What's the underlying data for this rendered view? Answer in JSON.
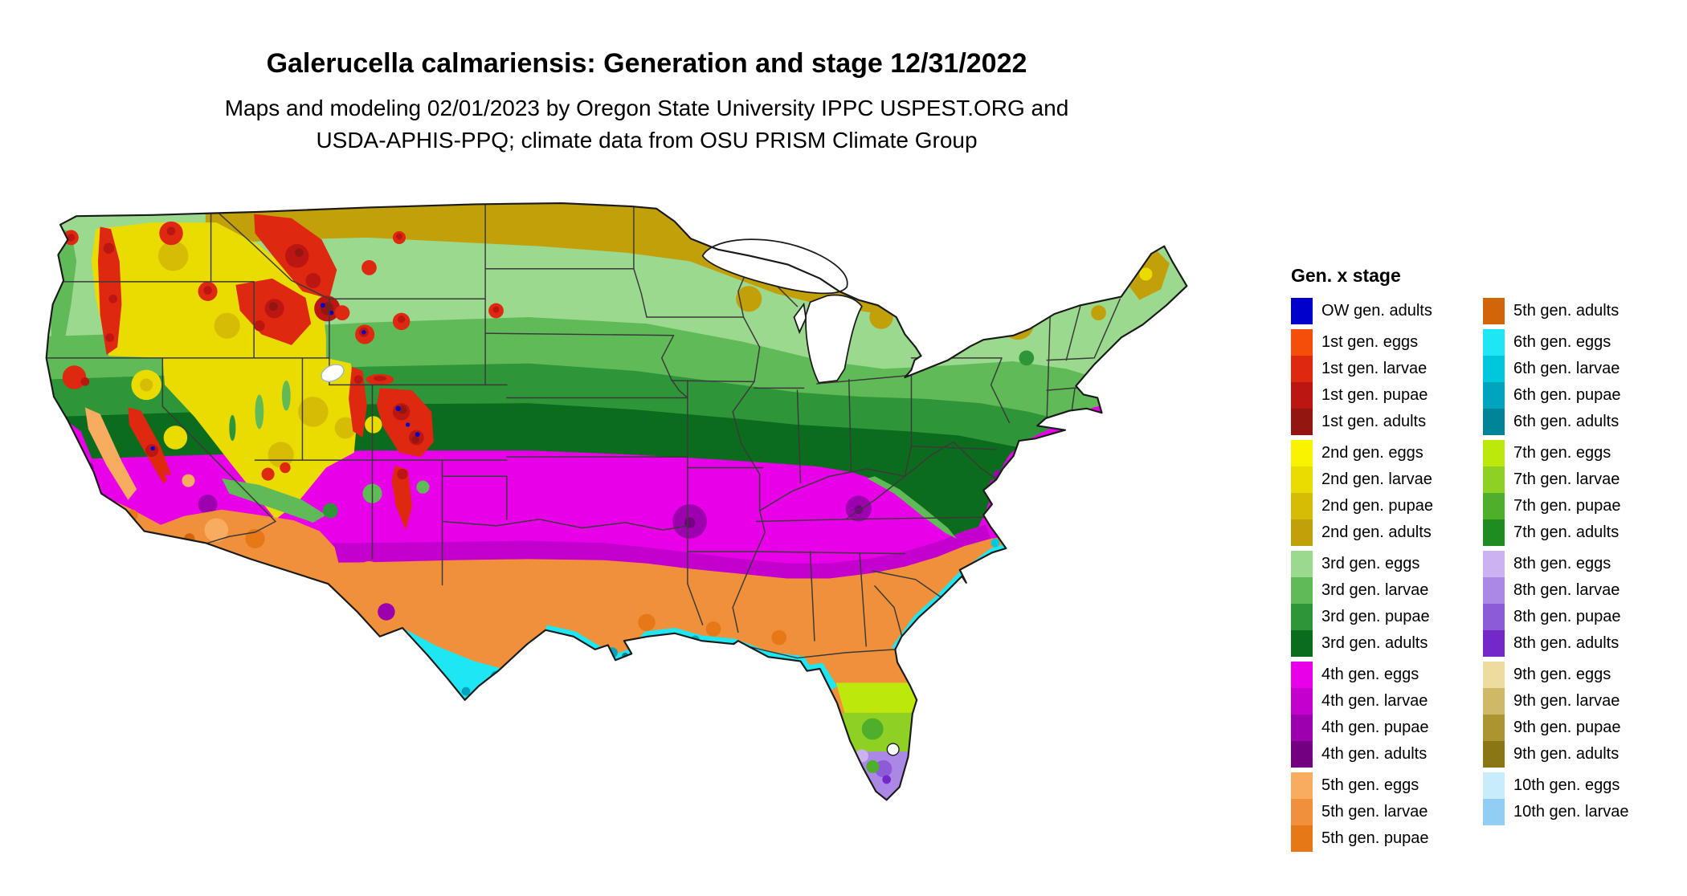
{
  "header": {
    "title": "Galerucella calmariensis: Generation and stage 12/31/2022",
    "subtitle_line1": "Maps and modeling 02/01/2023 by Oregon State University IPPC USPEST.ORG and",
    "subtitle_line2": "USDA-APHIS-PPQ; climate data from OSU PRISM Climate Group"
  },
  "palette": {
    "ow_adults": "#0000CC",
    "g1_eggs": "#F54D0A",
    "g1_larvae": "#DE2810",
    "g1_pupae": "#BC1612",
    "g1_adults": "#931710",
    "g2_eggs": "#F8F400",
    "g2_larvae": "#EADC00",
    "g2_pupae": "#D7BC06",
    "g2_adults": "#C2A00A",
    "g3_eggs": "#9BD98F",
    "g3_larvae": "#60BA57",
    "g3_pupae": "#2E9638",
    "g3_adults": "#0C6C1E",
    "g4_eggs": "#E800E8",
    "g4_larvae": "#C400CE",
    "g4_pupae": "#9D00AE",
    "g4_adults": "#730081",
    "g5_eggs": "#F8AC60",
    "g5_larvae": "#F1903A",
    "g5_pupae": "#E67818",
    "g5_adults": "#D2640A",
    "g6_eggs": "#1EE6F2",
    "g6_larvae": "#00C8DC",
    "g6_pupae": "#00A4BC",
    "g6_adults": "#008496",
    "g7_eggs": "#BCE80C",
    "g7_larvae": "#8ED024",
    "g7_pupae": "#4FAE2A",
    "g7_adults": "#1F8C22",
    "g8_eggs": "#CDB2F2",
    "g8_larvae": "#AC88E6",
    "g8_pupae": "#8C5CD8",
    "g8_adults": "#7428C8",
    "g9_eggs": "#EDDCA0",
    "g9_larvae": "#CFB968",
    "g9_pupae": "#AC9530",
    "g9_adults": "#8A7614",
    "g10_eggs": "#C8ECFC",
    "g10_larvae": "#92CEF4",
    "map_outline": "#1a1a1a",
    "state_line": "#3a3a3a"
  },
  "legend": {
    "title": "Gen. x stage",
    "columns": [
      {
        "groups": [
          {
            "items": [
              {
                "label": "OW gen. adults",
                "fill": "ow_adults"
              }
            ]
          },
          {
            "items": [
              {
                "label": "1st gen. eggs",
                "fill": "g1_eggs"
              },
              {
                "label": "1st gen. larvae",
                "fill": "g1_larvae"
              },
              {
                "label": "1st gen. pupae",
                "fill": "g1_pupae"
              },
              {
                "label": "1st gen. adults",
                "fill": "g1_adults"
              }
            ]
          },
          {
            "items": [
              {
                "label": "2nd gen. eggs",
                "fill": "g2_eggs"
              },
              {
                "label": "2nd gen. larvae",
                "fill": "g2_larvae"
              },
              {
                "label": "2nd gen. pupae",
                "fill": "g2_pupae"
              },
              {
                "label": "2nd gen. adults",
                "fill": "g2_adults"
              }
            ]
          },
          {
            "items": [
              {
                "label": "3rd gen. eggs",
                "fill": "g3_eggs"
              },
              {
                "label": "3rd gen. larvae",
                "fill": "g3_larvae"
              },
              {
                "label": "3rd gen. pupae",
                "fill": "g3_pupae"
              },
              {
                "label": "3rd gen. adults",
                "fill": "g3_adults"
              }
            ]
          },
          {
            "items": [
              {
                "label": "4th gen. eggs",
                "fill": "g4_eggs"
              },
              {
                "label": "4th gen. larvae",
                "fill": "g4_larvae"
              },
              {
                "label": "4th gen. pupae",
                "fill": "g4_pupae"
              },
              {
                "label": "4th gen. adults",
                "fill": "g4_adults"
              }
            ]
          },
          {
            "items": [
              {
                "label": "5th gen. eggs",
                "fill": "g5_eggs"
              },
              {
                "label": "5th gen. larvae",
                "fill": "g5_larvae"
              },
              {
                "label": "5th gen. pupae",
                "fill": "g5_pupae"
              }
            ]
          }
        ]
      },
      {
        "groups": [
          {
            "items": [
              {
                "label": "5th gen. adults",
                "fill": "g5_adults"
              }
            ]
          },
          {
            "items": [
              {
                "label": "6th gen. eggs",
                "fill": "g6_eggs"
              },
              {
                "label": "6th gen. larvae",
                "fill": "g6_larvae"
              },
              {
                "label": "6th gen. pupae",
                "fill": "g6_pupae"
              },
              {
                "label": "6th gen. adults",
                "fill": "g6_adults"
              }
            ]
          },
          {
            "items": [
              {
                "label": "7th gen. eggs",
                "fill": "g7_eggs"
              },
              {
                "label": "7th gen. larvae",
                "fill": "g7_larvae"
              },
              {
                "label": "7th gen. pupae",
                "fill": "g7_pupae"
              },
              {
                "label": "7th gen. adults",
                "fill": "g7_adults"
              }
            ]
          },
          {
            "items": [
              {
                "label": "8th gen. eggs",
                "fill": "g8_eggs"
              },
              {
                "label": "8th gen. larvae",
                "fill": "g8_larvae"
              },
              {
                "label": "8th gen. pupae",
                "fill": "g8_pupae"
              },
              {
                "label": "8th gen. adults",
                "fill": "g8_adults"
              }
            ]
          },
          {
            "items": [
              {
                "label": "9th gen. eggs",
                "fill": "g9_eggs"
              },
              {
                "label": "9th gen. larvae",
                "fill": "g9_larvae"
              },
              {
                "label": "9th gen. pupae",
                "fill": "g9_pupae"
              },
              {
                "label": "9th gen. adults",
                "fill": "g9_adults"
              }
            ]
          },
          {
            "items": [
              {
                "label": "10th gen. eggs",
                "fill": "g10_eggs"
              },
              {
                "label": "10th gen. larvae",
                "fill": "g10_larvae"
              }
            ]
          }
        ]
      }
    ]
  }
}
